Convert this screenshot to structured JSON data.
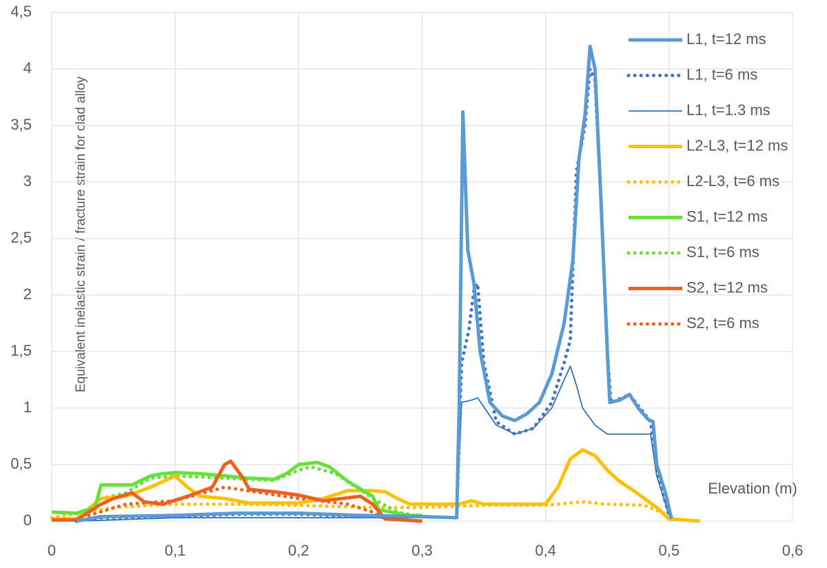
{
  "chart_data": {
    "type": "line",
    "y_label": "Equivalent inelastic strain / fracture strain for clad alloy",
    "x_label": "Elevation (m)",
    "xlim": [
      0,
      0.6
    ],
    "xticks": [
      0,
      {
        "value": 0.1,
        "label": "0,1"
      },
      {
        "value": 0.2,
        "label": "0,2"
      },
      {
        "value": 0.3,
        "label": "0,3"
      },
      {
        "value": 0.4,
        "label": "0,4"
      },
      {
        "value": 0.5,
        "label": "0,5"
      },
      {
        "value": 0.6,
        "label": "0,6"
      }
    ],
    "ylim": [
      0,
      4.5
    ],
    "yticks": [
      0,
      {
        "value": 0.5,
        "label": "0,5"
      },
      1,
      {
        "value": 1.5,
        "label": "1,5"
      },
      2,
      {
        "value": 2.5,
        "label": "2,5"
      },
      3,
      {
        "value": 3.5,
        "label": "3,5"
      },
      4,
      {
        "value": 4.5,
        "label": "4,5"
      }
    ],
    "grid": true,
    "legend": "top-right",
    "series": [
      {
        "name": "L1, t=12 ms",
        "color": "#5b9bd5",
        "line_style": "thick",
        "x": [
          0.02,
          0.04,
          0.1,
          0.15,
          0.2,
          0.25,
          0.3,
          0.328,
          0.33,
          0.333,
          0.337,
          0.342,
          0.347,
          0.355,
          0.365,
          0.375,
          0.385,
          0.395,
          0.405,
          0.415,
          0.422,
          0.427,
          0.432,
          0.436,
          0.44,
          0.445,
          0.45,
          0.452,
          0.46,
          0.468,
          0.475,
          0.483,
          0.487,
          0.49,
          0.497,
          0.502
        ],
        "values": [
          0,
          0.04,
          0.05,
          0.07,
          0.07,
          0.05,
          0.04,
          0.03,
          1.0,
          3.62,
          2.4,
          2.1,
          1.5,
          1.05,
          0.93,
          0.89,
          0.95,
          1.05,
          1.3,
          1.75,
          2.3,
          3.2,
          3.6,
          4.2,
          4.0,
          2.8,
          1.5,
          1.05,
          1.07,
          1.12,
          1.0,
          0.9,
          0.88,
          0.5,
          0.25,
          0.02
        ]
      },
      {
        "name": "L1, t=6 ms",
        "color": "#4472c4",
        "line_style": "dotted",
        "x": [
          0.02,
          0.04,
          0.1,
          0.15,
          0.2,
          0.25,
          0.3,
          0.328,
          0.332,
          0.338,
          0.342,
          0.345,
          0.35,
          0.36,
          0.375,
          0.39,
          0.405,
          0.415,
          0.42,
          0.425,
          0.432,
          0.436,
          0.44,
          0.445,
          0.45,
          0.453,
          0.468,
          0.485,
          0.49,
          0.5
        ],
        "values": [
          0,
          0.03,
          0.04,
          0.06,
          0.06,
          0.04,
          0.04,
          0.03,
          1.4,
          1.7,
          2.05,
          2.1,
          1.4,
          0.88,
          0.77,
          0.82,
          1.05,
          1.4,
          1.6,
          3.1,
          3.5,
          4.0,
          3.9,
          2.8,
          1.5,
          1.05,
          1.12,
          0.88,
          0.45,
          0.05
        ]
      },
      {
        "name": "L1, t=1.3 ms",
        "color": "#2e75b6",
        "line_style": "thin",
        "x": [
          0.02,
          0.1,
          0.3,
          0.328,
          0.332,
          0.34,
          0.345,
          0.36,
          0.375,
          0.39,
          0.405,
          0.415,
          0.42,
          0.425,
          0.43,
          0.44,
          0.45,
          0.485,
          0.49,
          0.5
        ],
        "values": [
          0,
          0.03,
          0.03,
          0.03,
          1.05,
          1.07,
          1.09,
          0.85,
          0.77,
          0.82,
          1.0,
          1.25,
          1.37,
          1.2,
          1.0,
          0.85,
          0.77,
          0.77,
          0.4,
          0.05
        ]
      },
      {
        "name": "L2-L3, t=12 ms",
        "color": "#ffc000",
        "line_style": "thick",
        "x": [
          0,
          0.02,
          0.04,
          0.06,
          0.08,
          0.1,
          0.11,
          0.12,
          0.14,
          0.16,
          0.2,
          0.22,
          0.24,
          0.26,
          0.27,
          0.28,
          0.29,
          0.33,
          0.34,
          0.35,
          0.4,
          0.41,
          0.42,
          0.43,
          0.44,
          0.45,
          0.46,
          0.47,
          0.48,
          0.49,
          0.5,
          0.525
        ],
        "values": [
          0.02,
          0.02,
          0.2,
          0.22,
          0.3,
          0.4,
          0.3,
          0.22,
          0.2,
          0.16,
          0.16,
          0.2,
          0.27,
          0.27,
          0.26,
          0.2,
          0.15,
          0.15,
          0.18,
          0.15,
          0.15,
          0.3,
          0.55,
          0.63,
          0.58,
          0.45,
          0.35,
          0.28,
          0.2,
          0.12,
          0.02,
          0
        ]
      },
      {
        "name": "L2-L3, t=6 ms",
        "color": "#ffc000",
        "line_style": "dotted",
        "x": [
          0,
          0.05,
          0.1,
          0.15,
          0.2,
          0.26,
          0.3,
          0.35,
          0.4,
          0.43,
          0.45,
          0.48,
          0.5
        ],
        "values": [
          0.03,
          0.12,
          0.15,
          0.15,
          0.14,
          0.12,
          0.12,
          0.14,
          0.14,
          0.17,
          0.15,
          0.14,
          0.05
        ]
      },
      {
        "name": "S1, t=12 ms",
        "color": "#66e03a",
        "line_style": "thick",
        "x": [
          0,
          0.02,
          0.035,
          0.04,
          0.065,
          0.08,
          0.09,
          0.1,
          0.12,
          0.14,
          0.16,
          0.18,
          0.19,
          0.2,
          0.215,
          0.225,
          0.24,
          0.26,
          0.265,
          0.29,
          0.3
        ],
        "values": [
          0.08,
          0.07,
          0.12,
          0.32,
          0.32,
          0.4,
          0.42,
          0.43,
          0.42,
          0.4,
          0.38,
          0.37,
          0.42,
          0.5,
          0.52,
          0.48,
          0.35,
          0.22,
          0.1,
          0.05,
          0.05
        ]
      },
      {
        "name": "S1, t=6 ms",
        "color": "#66e03a",
        "line_style": "dotted",
        "x": [
          0.04,
          0.06,
          0.08,
          0.1,
          0.14,
          0.18,
          0.2,
          0.21,
          0.23,
          0.26,
          0.28,
          0.3
        ],
        "values": [
          0.2,
          0.25,
          0.38,
          0.4,
          0.38,
          0.36,
          0.45,
          0.48,
          0.42,
          0.2,
          0.08,
          0.04
        ]
      },
      {
        "name": "S2, t=12 ms",
        "color": "#f0601c",
        "line_style": "thick",
        "x": [
          0,
          0.02,
          0.04,
          0.05,
          0.065,
          0.075,
          0.09,
          0.11,
          0.13,
          0.14,
          0.145,
          0.155,
          0.16,
          0.18,
          0.2,
          0.22,
          0.235,
          0.25,
          0.26,
          0.27,
          0.3
        ],
        "values": [
          0.01,
          0.01,
          0.15,
          0.2,
          0.25,
          0.17,
          0.15,
          0.22,
          0.3,
          0.5,
          0.53,
          0.38,
          0.28,
          0.26,
          0.23,
          0.18,
          0.2,
          0.22,
          0.15,
          0.02,
          0
        ]
      },
      {
        "name": "S2, t=6 ms",
        "color": "#f0601c",
        "line_style": "dotted",
        "x": [
          0.03,
          0.06,
          0.1,
          0.14,
          0.17,
          0.2,
          0.24,
          0.26,
          0.27
        ],
        "values": [
          0.05,
          0.15,
          0.18,
          0.3,
          0.25,
          0.2,
          0.15,
          0.08,
          0.02
        ]
      }
    ]
  }
}
